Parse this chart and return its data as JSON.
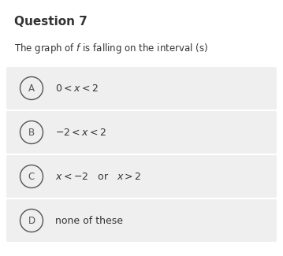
{
  "title": "Question 7",
  "question": "The graph of $f$ is falling on the interval (s)",
  "options": [
    {
      "label": "A",
      "text": "$0 < x < 2$"
    },
    {
      "label": "B",
      "text": "$-2 < x < 2$"
    },
    {
      "label": "C",
      "text": "$x < -2$   or   $x > 2$"
    },
    {
      "label": "D",
      "text": "none of these"
    }
  ],
  "white_bg": "#ffffff",
  "option_bg": "#efefef",
  "title_fontsize": 11,
  "question_fontsize": 8.5,
  "option_fontsize": 9,
  "text_color": "#333333",
  "circle_color": "#555555"
}
